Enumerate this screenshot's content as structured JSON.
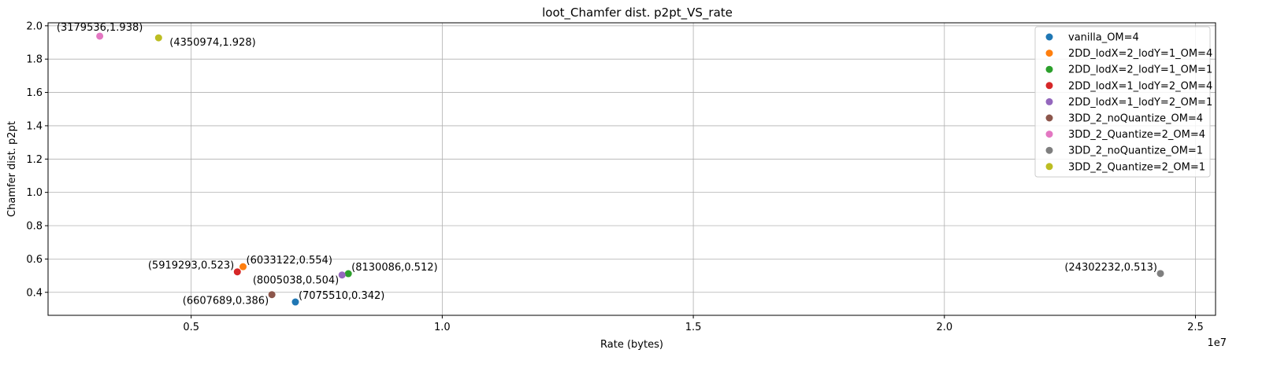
{
  "chart_data": {
    "type": "scatter",
    "title": "loot_Chamfer dist. p2pt_VS_rate",
    "xlabel": "Rate (bytes)",
    "ylabel": "Chamfer dist. p2pt",
    "x_offset_label": "1e7",
    "xlim": [
      2150000,
      25400000
    ],
    "ylim": [
      0.262,
      2.018
    ],
    "x_ticks": [
      {
        "value": 5000000,
        "label": "0.5"
      },
      {
        "value": 10000000,
        "label": "1.0"
      },
      {
        "value": 15000000,
        "label": "1.5"
      },
      {
        "value": 20000000,
        "label": "2.0"
      },
      {
        "value": 25000000,
        "label": "2.5"
      }
    ],
    "y_ticks": [
      {
        "value": 0.4,
        "label": "0.4"
      },
      {
        "value": 0.6,
        "label": "0.6"
      },
      {
        "value": 0.8,
        "label": "0.8"
      },
      {
        "value": 1.0,
        "label": "1.0"
      },
      {
        "value": 1.2,
        "label": "1.2"
      },
      {
        "value": 1.4,
        "label": "1.4"
      },
      {
        "value": 1.6,
        "label": "1.6"
      },
      {
        "value": 1.8,
        "label": "1.8"
      },
      {
        "value": 2.0,
        "label": "2.0"
      }
    ],
    "grid": true,
    "legend_position": "top-right",
    "series": [
      {
        "name": "vanilla_OM=4",
        "color": "#1f77b4",
        "x": 7075510,
        "y": 0.342,
        "annotation": "(7075510,0.342)",
        "ann_anchor": "left"
      },
      {
        "name": "2DD_lodX=2_lodY=1_OM=4",
        "color": "#ff7f0e",
        "x": 6033122,
        "y": 0.554,
        "annotation": "(6033122,0.554)",
        "ann_anchor": "left"
      },
      {
        "name": "2DD_lodX=2_lodY=1_OM=1",
        "color": "#2ca02c",
        "x": 8130086,
        "y": 0.512,
        "annotation": "(8130086,0.512)",
        "ann_anchor": "left"
      },
      {
        "name": "2DD_lodX=1_lodY=2_OM=4",
        "color": "#d62728",
        "x": 5919293,
        "y": 0.523,
        "annotation": "(5919293,0.523)",
        "ann_anchor": "right"
      },
      {
        "name": "2DD_lodX=1_lodY=2_OM=1",
        "color": "#9467bd",
        "x": 8005038,
        "y": 0.504,
        "annotation": "(8005038,0.504)",
        "ann_anchor": "right-below"
      },
      {
        "name": "3DD_2_noQuantize_OM=4",
        "color": "#8c564b",
        "x": 6607689,
        "y": 0.386,
        "annotation": "(6607689,0.386)",
        "ann_anchor": "right-below"
      },
      {
        "name": "3DD_2_Quantize=2_OM=4",
        "color": "#e377c2",
        "x": 3179536,
        "y": 1.938,
        "annotation": "(3179536,1.938)",
        "ann_anchor": "center-above"
      },
      {
        "name": "3DD_2_noQuantize_OM=1",
        "color": "#7f7f7f",
        "x": 24302232,
        "y": 0.513,
        "annotation": "(24302232,0.513)",
        "ann_anchor": "right"
      },
      {
        "name": "3DD_2_Quantize=2_OM=1",
        "color": "#bcbd22",
        "x": 4350974,
        "y": 1.928,
        "annotation": "(4350974,1.928)",
        "ann_anchor": "left-below"
      }
    ]
  }
}
